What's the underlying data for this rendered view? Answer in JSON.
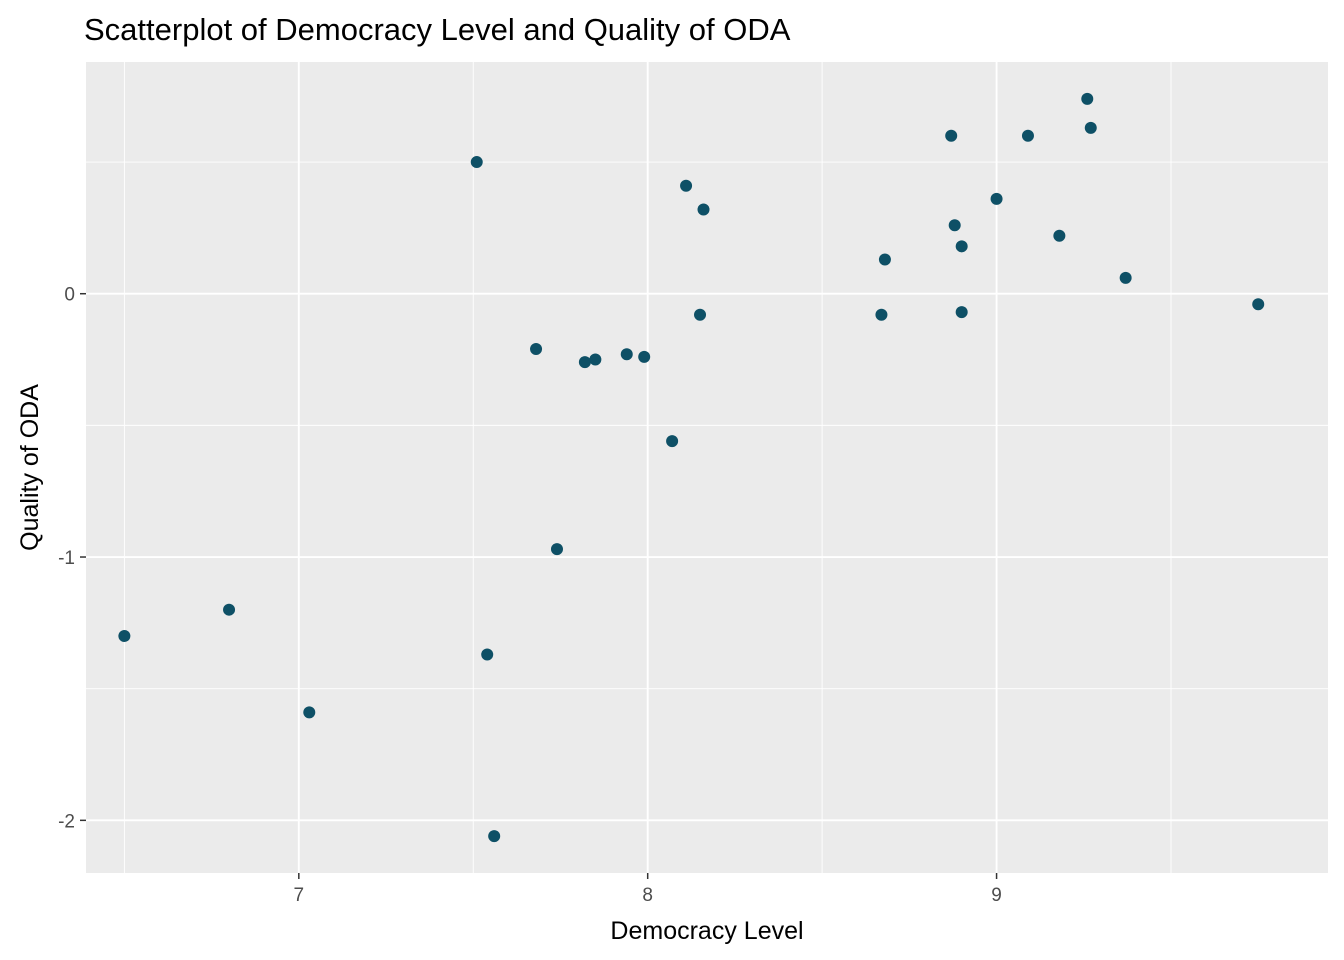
{
  "chart_data": {
    "type": "scatter",
    "title": "Scatterplot of Democracy Level and Quality of ODA",
    "xlabel": "Democracy Level",
    "ylabel": "Quality of ODA",
    "xlim": [
      6.39,
      9.95
    ],
    "ylim": [
      -2.2,
      0.88
    ],
    "x_ticks": [
      7,
      8,
      9
    ],
    "y_ticks": [
      -2,
      -1,
      0
    ],
    "grid": true,
    "panel_color": "#ebebeb",
    "grid_color": "#ffffff",
    "point_color": "#0e5066",
    "points": [
      {
        "x": 6.5,
        "y": -1.3
      },
      {
        "x": 6.8,
        "y": -1.2
      },
      {
        "x": 7.03,
        "y": -1.59
      },
      {
        "x": 7.51,
        "y": 0.5
      },
      {
        "x": 7.54,
        "y": -1.37
      },
      {
        "x": 7.56,
        "y": -2.06
      },
      {
        "x": 7.68,
        "y": -0.21
      },
      {
        "x": 7.74,
        "y": -0.97
      },
      {
        "x": 7.82,
        "y": -0.26
      },
      {
        "x": 7.85,
        "y": -0.25
      },
      {
        "x": 7.94,
        "y": -0.23
      },
      {
        "x": 7.99,
        "y": -0.24
      },
      {
        "x": 8.07,
        "y": -0.56
      },
      {
        "x": 8.11,
        "y": 0.41
      },
      {
        "x": 8.15,
        "y": -0.08
      },
      {
        "x": 8.16,
        "y": 0.32
      },
      {
        "x": 8.67,
        "y": -0.08
      },
      {
        "x": 8.68,
        "y": 0.13
      },
      {
        "x": 8.87,
        "y": 0.6
      },
      {
        "x": 8.88,
        "y": 0.26
      },
      {
        "x": 8.9,
        "y": -0.07
      },
      {
        "x": 8.9,
        "y": 0.18
      },
      {
        "x": 9.0,
        "y": 0.36
      },
      {
        "x": 9.09,
        "y": 0.6
      },
      {
        "x": 9.18,
        "y": 0.22
      },
      {
        "x": 9.26,
        "y": 0.74
      },
      {
        "x": 9.27,
        "y": 0.63
      },
      {
        "x": 9.37,
        "y": 0.06
      },
      {
        "x": 9.75,
        "y": -0.04
      }
    ]
  }
}
